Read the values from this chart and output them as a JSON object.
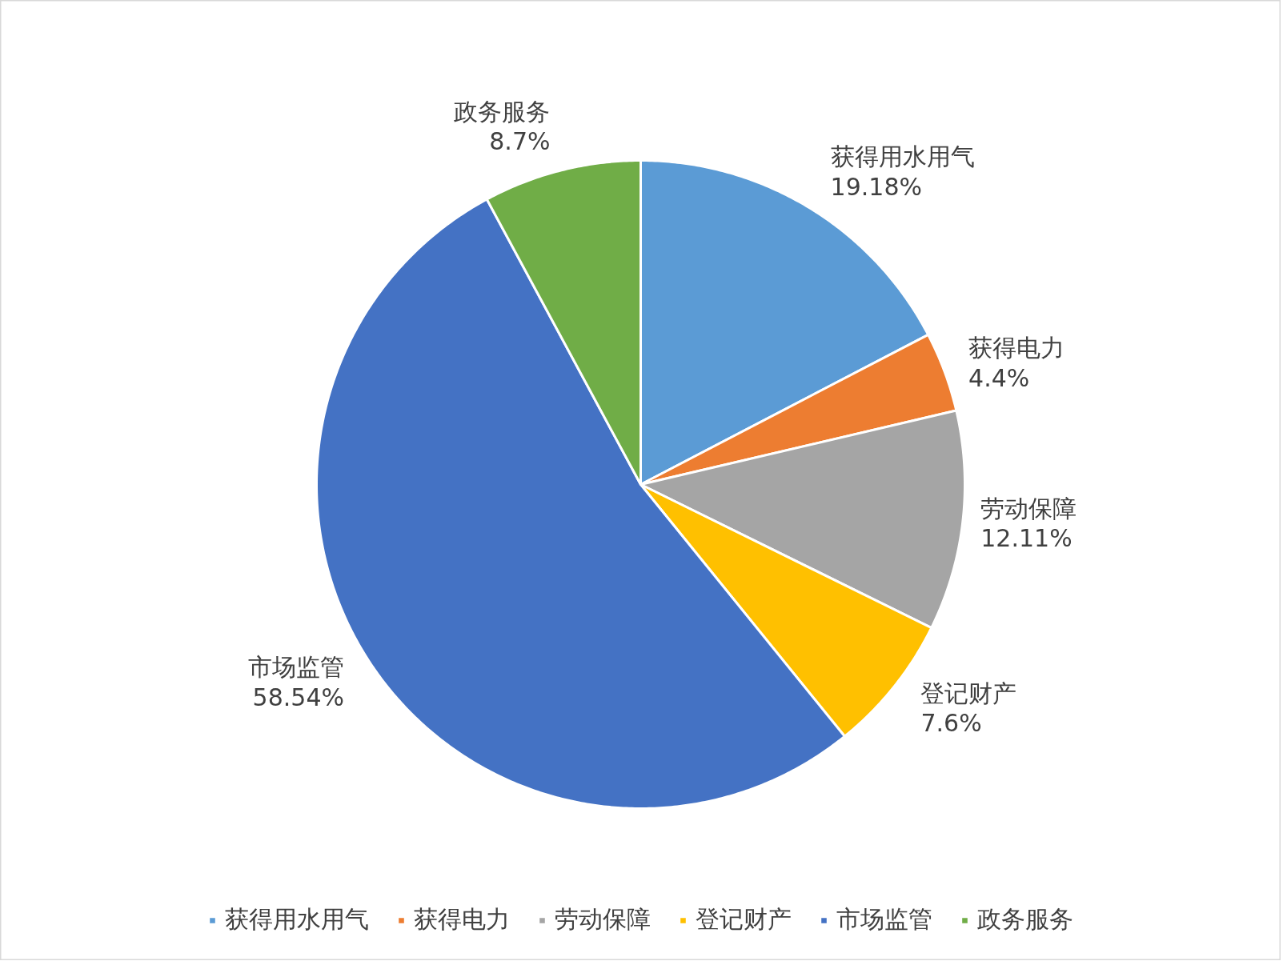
{
  "chart_data": {
    "type": "pie",
    "categories": [
      "获得用水用气",
      "获得电力",
      "劳动保障",
      "登记财产",
      "市场监管",
      "政务服务"
    ],
    "values": [
      19.18,
      4.4,
      12.11,
      7.6,
      58.54,
      8.7
    ],
    "colors": [
      "#5b9bd5",
      "#ed7d31",
      "#a5a5a5",
      "#ffc000",
      "#4472c4",
      "#70ad47"
    ],
    "value_labels": [
      "19.18%",
      "4.4%",
      "12.11%",
      "7.6%",
      "58.54%",
      "8.7%"
    ],
    "legend": "bottom"
  }
}
